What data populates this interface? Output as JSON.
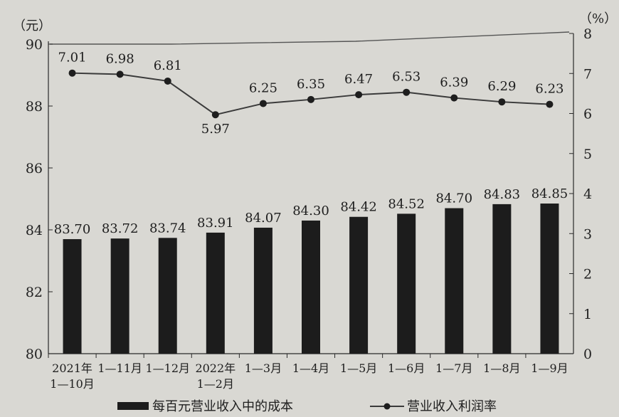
{
  "chart_data": {
    "type": "bar",
    "categories": [
      [
        "2021年",
        "1—10月"
      ],
      [
        "1—11月"
      ],
      [
        "1—12月"
      ],
      [
        "2022年",
        "1—2月"
      ],
      [
        "1—3月"
      ],
      [
        "1—4月"
      ],
      [
        "1—5月"
      ],
      [
        "1—6月"
      ],
      [
        "1—7月"
      ],
      [
        "1—8月"
      ],
      [
        "1—9月"
      ]
    ],
    "series": [
      {
        "name": "每百元营业收入中的成本",
        "type": "bar",
        "axis": "left",
        "values": [
          83.7,
          83.72,
          83.74,
          83.91,
          84.07,
          84.3,
          84.42,
          84.52,
          84.7,
          84.83,
          84.85
        ],
        "labels": [
          "83.70",
          "83.72",
          "83.74",
          "83.91",
          "84.07",
          "84.30",
          "84.42",
          "84.52",
          "84.70",
          "84.83",
          "84.85"
        ]
      },
      {
        "name": "营业收入利润率",
        "type": "line",
        "axis": "right",
        "values": [
          7.01,
          6.98,
          6.81,
          5.97,
          6.25,
          6.35,
          6.47,
          6.53,
          6.39,
          6.29,
          6.23
        ],
        "labels": [
          "7.01",
          "6.98",
          "6.81",
          "5.97",
          "6.25",
          "6.35",
          "6.47",
          "6.53",
          "6.39",
          "6.29",
          "6.23"
        ]
      }
    ],
    "left_axis": {
      "unit": "（元）",
      "ylim": [
        80,
        90
      ],
      "ticks": [
        "80",
        "82",
        "84",
        "86",
        "88",
        "90"
      ]
    },
    "right_axis": {
      "unit": "（%）",
      "ylim": [
        0,
        8
      ],
      "ticks": [
        "0",
        "1",
        "2",
        "3",
        "4",
        "5",
        "6",
        "7",
        "8"
      ]
    },
    "legend": {
      "position": "bottom"
    },
    "grid": false
  }
}
